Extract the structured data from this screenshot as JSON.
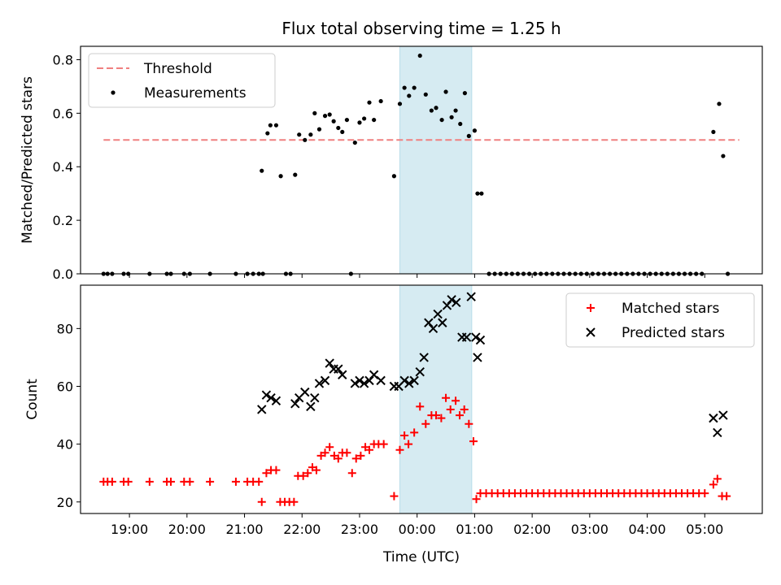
{
  "chart_data": [
    {
      "type": "scatter",
      "title": "Flux total observing time = 1.25 h",
      "xlabel": "",
      "ylabel": "Matched/Predicted stars",
      "xlim": [
        -0.85,
        11.0
      ],
      "ylim": [
        0,
        0.85
      ],
      "xticks": [
        0,
        1,
        2,
        3,
        4,
        5,
        6,
        7,
        8,
        9,
        10
      ],
      "yticks": [
        0.0,
        0.2,
        0.4,
        0.6,
        0.8
      ],
      "ytick_labels": [
        "0.0",
        "0.2",
        "0.4",
        "0.6",
        "0.8"
      ],
      "shaded_span": [
        4.7,
        5.95
      ],
      "shaded_color": "#add8e6",
      "legend_position": "upper left",
      "threshold": {
        "name": "Threshold",
        "y": 0.5,
        "x": [
          -0.45,
          10.6
        ],
        "color": "#f08080"
      },
      "series": [
        {
          "name": "Measurements",
          "marker": "dot",
          "color": "#000000",
          "points": [
            [
              -0.45,
              0
            ],
            [
              -0.38,
              0
            ],
            [
              -0.3,
              0
            ],
            [
              -0.1,
              0
            ],
            [
              -0.02,
              0
            ],
            [
              0.35,
              0
            ],
            [
              0.65,
              0
            ],
            [
              0.72,
              0
            ],
            [
              0.95,
              0
            ],
            [
              1.05,
              0
            ],
            [
              1.4,
              0
            ],
            [
              1.85,
              0
            ],
            [
              2.05,
              0
            ],
            [
              2.15,
              0
            ],
            [
              2.25,
              0
            ],
            [
              2.32,
              0
            ],
            [
              2.3,
              0.385
            ],
            [
              2.4,
              0.525
            ],
            [
              2.45,
              0.555
            ],
            [
              2.55,
              0.555
            ],
            [
              2.63,
              0.365
            ],
            [
              2.72,
              0
            ],
            [
              2.8,
              0
            ],
            [
              2.88,
              0.37
            ],
            [
              2.95,
              0.52
            ],
            [
              3.05,
              0.5
            ],
            [
              3.15,
              0.52
            ],
            [
              3.22,
              0.6
            ],
            [
              3.3,
              0.54
            ],
            [
              3.4,
              0.59
            ],
            [
              3.48,
              0.595
            ],
            [
              3.55,
              0.57
            ],
            [
              3.63,
              0.545
            ],
            [
              3.7,
              0.53
            ],
            [
              3.78,
              0.575
            ],
            [
              3.85,
              0
            ],
            [
              3.92,
              0.49
            ],
            [
              4.0,
              0.565
            ],
            [
              4.08,
              0.58
            ],
            [
              4.17,
              0.64
            ],
            [
              4.25,
              0.575
            ],
            [
              4.37,
              0.645
            ],
            [
              4.6,
              0.365
            ],
            [
              4.7,
              0.635
            ],
            [
              4.78,
              0.695
            ],
            [
              4.86,
              0.665
            ],
            [
              4.95,
              0.695
            ],
            [
              5.05,
              0.815
            ],
            [
              5.15,
              0.67
            ],
            [
              5.25,
              0.61
            ],
            [
              5.33,
              0.62
            ],
            [
              5.43,
              0.575
            ],
            [
              5.5,
              0.68
            ],
            [
              5.6,
              0.585
            ],
            [
              5.67,
              0.61
            ],
            [
              5.75,
              0.56
            ],
            [
              5.83,
              0.675
            ],
            [
              5.9,
              0.515
            ],
            [
              6.0,
              0.535
            ],
            [
              6.05,
              0.3
            ],
            [
              6.12,
              0.3
            ],
            [
              6.25,
              0
            ],
            [
              6.35,
              0
            ],
            [
              6.45,
              0
            ],
            [
              6.55,
              0
            ],
            [
              6.65,
              0
            ],
            [
              6.75,
              0
            ],
            [
              6.85,
              0
            ],
            [
              6.95,
              0
            ],
            [
              7.05,
              0
            ],
            [
              7.15,
              0
            ],
            [
              7.25,
              0
            ],
            [
              7.35,
              0
            ],
            [
              7.45,
              0
            ],
            [
              7.55,
              0
            ],
            [
              7.65,
              0
            ],
            [
              7.75,
              0
            ],
            [
              7.85,
              0
            ],
            [
              7.95,
              0
            ],
            [
              8.05,
              0
            ],
            [
              8.15,
              0
            ],
            [
              8.25,
              0
            ],
            [
              8.35,
              0
            ],
            [
              8.45,
              0
            ],
            [
              8.55,
              0
            ],
            [
              8.65,
              0
            ],
            [
              8.75,
              0
            ],
            [
              8.85,
              0
            ],
            [
              8.95,
              0
            ],
            [
              9.05,
              0
            ],
            [
              9.15,
              0
            ],
            [
              9.25,
              0
            ],
            [
              9.35,
              0
            ],
            [
              9.45,
              0
            ],
            [
              9.55,
              0
            ],
            [
              9.65,
              0
            ],
            [
              9.75,
              0
            ],
            [
              9.85,
              0
            ],
            [
              9.95,
              0
            ],
            [
              10.15,
              0.53
            ],
            [
              10.25,
              0.635
            ],
            [
              10.32,
              0.44
            ],
            [
              10.4,
              0
            ]
          ]
        }
      ]
    },
    {
      "type": "scatter",
      "title": "",
      "xlabel": "Time (UTC)",
      "ylabel": "Count",
      "xlim": [
        -0.85,
        11.0
      ],
      "ylim": [
        16,
        95
      ],
      "xticks": [
        0,
        1,
        2,
        3,
        4,
        5,
        6,
        7,
        8,
        9,
        10
      ],
      "xtick_labels": [
        "19:00",
        "20:00",
        "21:00",
        "22:00",
        "23:00",
        "00:00",
        "01:00",
        "02:00",
        "03:00",
        "04:00",
        "05:00"
      ],
      "yticks": [
        20,
        40,
        60,
        80
      ],
      "ytick_labels": [
        "20",
        "40",
        "60",
        "80"
      ],
      "shaded_span": [
        4.7,
        5.95
      ],
      "shaded_color": "#add8e6",
      "legend_position": "upper right",
      "series": [
        {
          "name": "Matched stars",
          "marker": "plus",
          "color": "#ff0000",
          "points": [
            [
              -0.45,
              27
            ],
            [
              -0.38,
              27
            ],
            [
              -0.3,
              27
            ],
            [
              -0.1,
              27
            ],
            [
              -0.02,
              27
            ],
            [
              0.35,
              27
            ],
            [
              0.65,
              27
            ],
            [
              0.72,
              27
            ],
            [
              0.95,
              27
            ],
            [
              1.05,
              27
            ],
            [
              1.4,
              27
            ],
            [
              1.85,
              27
            ],
            [
              2.05,
              27
            ],
            [
              2.15,
              27
            ],
            [
              2.25,
              27
            ],
            [
              2.3,
              20
            ],
            [
              2.38,
              30
            ],
            [
              2.46,
              31
            ],
            [
              2.55,
              31
            ],
            [
              2.62,
              20
            ],
            [
              2.7,
              20
            ],
            [
              2.78,
              20
            ],
            [
              2.86,
              20
            ],
            [
              2.93,
              29
            ],
            [
              3.02,
              29
            ],
            [
              3.1,
              30
            ],
            [
              3.18,
              32
            ],
            [
              3.25,
              31
            ],
            [
              3.33,
              36
            ],
            [
              3.4,
              37
            ],
            [
              3.48,
              39
            ],
            [
              3.56,
              36
            ],
            [
              3.63,
              35
            ],
            [
              3.7,
              37
            ],
            [
              3.78,
              37
            ],
            [
              3.87,
              30
            ],
            [
              3.94,
              35
            ],
            [
              4.02,
              36
            ],
            [
              4.1,
              39
            ],
            [
              4.17,
              38
            ],
            [
              4.25,
              40
            ],
            [
              4.33,
              40
            ],
            [
              4.42,
              40
            ],
            [
              4.6,
              22
            ],
            [
              4.7,
              38
            ],
            [
              4.78,
              43
            ],
            [
              4.85,
              40
            ],
            [
              4.95,
              44
            ],
            [
              5.05,
              53
            ],
            [
              5.15,
              47
            ],
            [
              5.25,
              50
            ],
            [
              5.33,
              50
            ],
            [
              5.42,
              49
            ],
            [
              5.5,
              56
            ],
            [
              5.58,
              52
            ],
            [
              5.67,
              55
            ],
            [
              5.74,
              50
            ],
            [
              5.82,
              52
            ],
            [
              5.9,
              47
            ],
            [
              5.98,
              41
            ],
            [
              6.03,
              21
            ],
            [
              6.1,
              23
            ],
            [
              6.2,
              23
            ],
            [
              6.3,
              23
            ],
            [
              6.4,
              23
            ],
            [
              6.5,
              23
            ],
            [
              6.6,
              23
            ],
            [
              6.7,
              23
            ],
            [
              6.8,
              23
            ],
            [
              6.9,
              23
            ],
            [
              7.0,
              23
            ],
            [
              7.1,
              23
            ],
            [
              7.2,
              23
            ],
            [
              7.3,
              23
            ],
            [
              7.4,
              23
            ],
            [
              7.5,
              23
            ],
            [
              7.6,
              23
            ],
            [
              7.7,
              23
            ],
            [
              7.8,
              23
            ],
            [
              7.9,
              23
            ],
            [
              8.0,
              23
            ],
            [
              8.1,
              23
            ],
            [
              8.2,
              23
            ],
            [
              8.3,
              23
            ],
            [
              8.4,
              23
            ],
            [
              8.5,
              23
            ],
            [
              8.6,
              23
            ],
            [
              8.7,
              23
            ],
            [
              8.8,
              23
            ],
            [
              8.9,
              23
            ],
            [
              9.0,
              23
            ],
            [
              9.1,
              23
            ],
            [
              9.2,
              23
            ],
            [
              9.3,
              23
            ],
            [
              9.4,
              23
            ],
            [
              9.5,
              23
            ],
            [
              9.6,
              23
            ],
            [
              9.7,
              23
            ],
            [
              9.8,
              23
            ],
            [
              9.9,
              23
            ],
            [
              10.0,
              23
            ],
            [
              10.15,
              26
            ],
            [
              10.22,
              28
            ],
            [
              10.3,
              22
            ],
            [
              10.38,
              22
            ]
          ]
        },
        {
          "name": "Predicted stars",
          "marker": "x",
          "color": "#000000",
          "points": [
            [
              2.3,
              52
            ],
            [
              2.38,
              57
            ],
            [
              2.46,
              56
            ],
            [
              2.55,
              55
            ],
            [
              2.88,
              54
            ],
            [
              2.95,
              56
            ],
            [
              3.05,
              58
            ],
            [
              3.15,
              53
            ],
            [
              3.22,
              56
            ],
            [
              3.3,
              61
            ],
            [
              3.4,
              62
            ],
            [
              3.48,
              68
            ],
            [
              3.55,
              66
            ],
            [
              3.63,
              66
            ],
            [
              3.7,
              64
            ],
            [
              3.92,
              61
            ],
            [
              4.0,
              62
            ],
            [
              4.08,
              61
            ],
            [
              4.17,
              62
            ],
            [
              4.25,
              64
            ],
            [
              4.37,
              62
            ],
            [
              4.6,
              60
            ],
            [
              4.68,
              60
            ],
            [
              4.78,
              62
            ],
            [
              4.86,
              61
            ],
            [
              4.95,
              62
            ],
            [
              5.05,
              65
            ],
            [
              5.12,
              70
            ],
            [
              5.2,
              82
            ],
            [
              5.28,
              80
            ],
            [
              5.36,
              85
            ],
            [
              5.44,
              82
            ],
            [
              5.52,
              88
            ],
            [
              5.6,
              90
            ],
            [
              5.68,
              89
            ],
            [
              5.78,
              77
            ],
            [
              5.86,
              77
            ],
            [
              5.94,
              91
            ],
            [
              6.02,
              77
            ],
            [
              6.05,
              70
            ],
            [
              6.1,
              76
            ],
            [
              10.15,
              49
            ],
            [
              10.22,
              44
            ],
            [
              10.32,
              50
            ]
          ]
        }
      ]
    }
  ]
}
